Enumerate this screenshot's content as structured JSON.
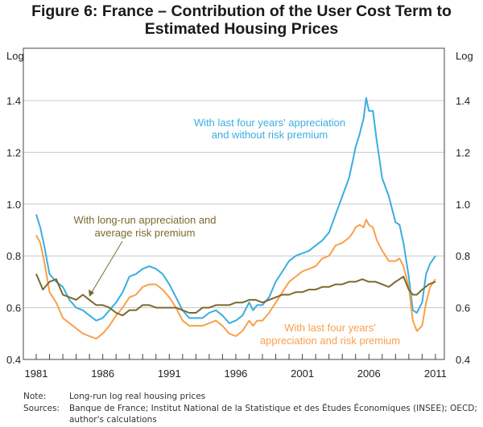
{
  "title_line1": "Figure 6: France – Contribution of the User Cost Term to",
  "title_line2": "Estimated Housing Prices",
  "notes": [
    {
      "key": "Note:",
      "lines": [
        "Long-run log real housing prices"
      ]
    },
    {
      "key": "Sources:",
      "lines": [
        "Banque de France; Institut National de la Statistique et des Études Économiques (INSEE); OECD;",
        "author's calculations"
      ]
    }
  ],
  "chart_data": {
    "type": "line",
    "title": "Figure 6: France – Contribution of the User Cost Term to Estimated Housing Prices",
    "ylabel_left": "Log",
    "ylabel_right": "Log",
    "xlabel": "",
    "ylim": [
      0.4,
      1.5
    ],
    "yticks": [
      0.4,
      0.6,
      0.8,
      1.0,
      1.2,
      1.4
    ],
    "ytick_labels": [
      "0.4",
      "0.6",
      "0.8",
      "1.0",
      "1.2",
      "1.4"
    ],
    "xlim": [
      1980,
      2011.7
    ],
    "xtick_labels": [
      "1981",
      "1986",
      "1991",
      "1996",
      "2001",
      "2006",
      "2011"
    ],
    "xtick_label_years": [
      1981,
      1986,
      1991,
      1996,
      2001,
      2006,
      2011
    ],
    "minor_ticks_every_year": true,
    "grid": "horizontal",
    "series": [
      {
        "name": "With last four years' appreciation and without risk premium",
        "color": "#3aaee0",
        "x": [
          1981,
          1981.3,
          1981.6,
          1982,
          1982.5,
          1983,
          1983.5,
          1984,
          1984.5,
          1985,
          1985.5,
          1986,
          1986.5,
          1987,
          1987.5,
          1988,
          1988.5,
          1989,
          1989.5,
          1990,
          1990.5,
          1991,
          1991.5,
          1992,
          1992.5,
          1993,
          1993.5,
          1994,
          1994.5,
          1995,
          1995.5,
          1996,
          1996.5,
          1997,
          1997.3,
          1997.6,
          1998,
          1998.5,
          1999,
          1999.5,
          2000,
          2000.5,
          2001,
          2001.5,
          2002,
          2002.5,
          2003,
          2003.5,
          2004,
          2004.5,
          2004.8,
          2005,
          2005.3,
          2005.6,
          2005.8,
          2006,
          2006.3,
          2006.6,
          2007,
          2007.5,
          2008,
          2008.3,
          2008.6,
          2009,
          2009.3,
          2009.6,
          2010,
          2010.3,
          2010.6,
          2011
        ],
        "y": [
          0.96,
          0.91,
          0.84,
          0.73,
          0.7,
          0.68,
          0.63,
          0.6,
          0.59,
          0.57,
          0.55,
          0.56,
          0.59,
          0.62,
          0.66,
          0.72,
          0.73,
          0.75,
          0.76,
          0.75,
          0.73,
          0.69,
          0.64,
          0.59,
          0.56,
          0.56,
          0.56,
          0.58,
          0.59,
          0.57,
          0.54,
          0.55,
          0.57,
          0.62,
          0.59,
          0.61,
          0.61,
          0.64,
          0.7,
          0.74,
          0.78,
          0.8,
          0.81,
          0.82,
          0.84,
          0.86,
          0.89,
          0.96,
          1.03,
          1.1,
          1.17,
          1.22,
          1.27,
          1.33,
          1.41,
          1.36,
          1.36,
          1.24,
          1.1,
          1.03,
          0.93,
          0.92,
          0.85,
          0.72,
          0.59,
          0.58,
          0.62,
          0.73,
          0.77,
          0.8
        ]
      },
      {
        "name": "With last four years' appreciation and risk premium",
        "color": "#f9a04a",
        "x": [
          1981,
          1981.3,
          1981.6,
          1982,
          1982.5,
          1983,
          1983.5,
          1984,
          1984.5,
          1985,
          1985.5,
          1986,
          1986.5,
          1987,
          1987.5,
          1988,
          1988.5,
          1989,
          1989.5,
          1990,
          1990.5,
          1991,
          1991.5,
          1992,
          1992.5,
          1993,
          1993.5,
          1994,
          1994.5,
          1995,
          1995.5,
          1996,
          1996.5,
          1997,
          1997.3,
          1997.6,
          1998,
          1998.5,
          1999,
          1999.5,
          2000,
          2000.5,
          2001,
          2001.5,
          2002,
          2002.5,
          2003,
          2003.5,
          2004,
          2004.5,
          2004.8,
          2005,
          2005.3,
          2005.6,
          2005.8,
          2006,
          2006.3,
          2006.6,
          2007,
          2007.5,
          2008,
          2008.3,
          2008.6,
          2009,
          2009.3,
          2009.6,
          2010,
          2010.3,
          2010.6,
          2011
        ],
        "y": [
          0.88,
          0.85,
          0.78,
          0.66,
          0.62,
          0.56,
          0.54,
          0.52,
          0.5,
          0.49,
          0.48,
          0.5,
          0.53,
          0.57,
          0.6,
          0.64,
          0.65,
          0.68,
          0.69,
          0.69,
          0.67,
          0.64,
          0.6,
          0.55,
          0.53,
          0.53,
          0.53,
          0.54,
          0.55,
          0.53,
          0.5,
          0.49,
          0.51,
          0.55,
          0.53,
          0.55,
          0.55,
          0.58,
          0.62,
          0.66,
          0.7,
          0.72,
          0.74,
          0.75,
          0.76,
          0.79,
          0.8,
          0.84,
          0.85,
          0.87,
          0.89,
          0.91,
          0.92,
          0.91,
          0.94,
          0.92,
          0.91,
          0.86,
          0.82,
          0.78,
          0.78,
          0.79,
          0.76,
          0.68,
          0.55,
          0.51,
          0.53,
          0.62,
          0.68,
          0.71
        ]
      },
      {
        "name": "With long-run appreciation and average risk premium",
        "color": "#7a6a2e",
        "x": [
          1981,
          1981.5,
          1982,
          1982.5,
          1983,
          1983.5,
          1984,
          1984.5,
          1985,
          1985.5,
          1986,
          1986.5,
          1987,
          1987.5,
          1988,
          1988.5,
          1989,
          1989.5,
          1990,
          1990.5,
          1991,
          1991.5,
          1992,
          1992.5,
          1993,
          1993.5,
          1994,
          1994.5,
          1995,
          1995.5,
          1996,
          1996.5,
          1997,
          1997.5,
          1998,
          1998.5,
          1999,
          1999.5,
          2000,
          2000.5,
          2001,
          2001.5,
          2002,
          2002.5,
          2003,
          2003.5,
          2004,
          2004.5,
          2005,
          2005.5,
          2006,
          2006.5,
          2007,
          2007.5,
          2008,
          2008.3,
          2008.6,
          2009,
          2009.3,
          2009.6,
          2010,
          2010.5,
          2011
        ],
        "y": [
          0.73,
          0.67,
          0.7,
          0.71,
          0.65,
          0.64,
          0.63,
          0.65,
          0.63,
          0.61,
          0.61,
          0.6,
          0.58,
          0.57,
          0.59,
          0.59,
          0.61,
          0.61,
          0.6,
          0.6,
          0.6,
          0.6,
          0.59,
          0.58,
          0.58,
          0.6,
          0.6,
          0.61,
          0.61,
          0.61,
          0.62,
          0.62,
          0.63,
          0.63,
          0.62,
          0.63,
          0.64,
          0.65,
          0.65,
          0.66,
          0.66,
          0.67,
          0.67,
          0.68,
          0.68,
          0.69,
          0.69,
          0.7,
          0.7,
          0.71,
          0.7,
          0.7,
          0.69,
          0.68,
          0.7,
          0.71,
          0.72,
          0.67,
          0.65,
          0.65,
          0.67,
          0.69,
          0.7
        ]
      }
    ],
    "annotations": [
      {
        "text_lines": [
          "With last four years' appreciation",
          "and without risk premium"
        ],
        "series": 0
      },
      {
        "text_lines": [
          "With long-run appreciation and",
          "average risk premium"
        ],
        "series": 2,
        "arrow": true
      },
      {
        "text_lines": [
          "With last four years'",
          "appreciation and risk premium"
        ],
        "series": 1
      }
    ]
  }
}
